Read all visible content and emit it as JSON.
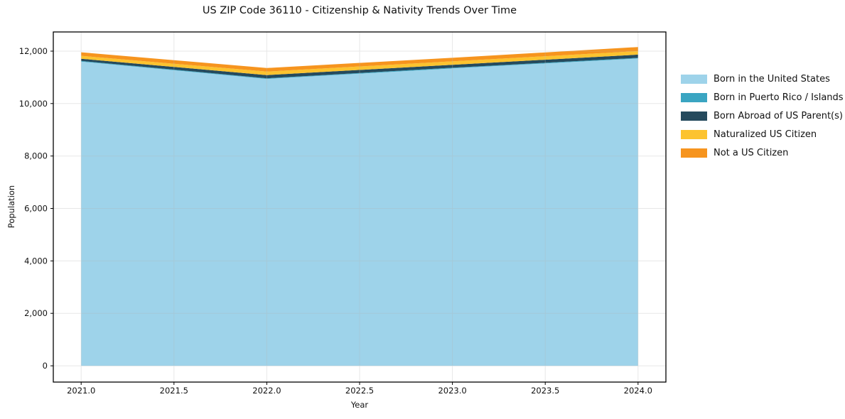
{
  "chart_data": {
    "type": "area",
    "stacked": true,
    "title": "US ZIP Code 36110 - Citizenship & Nativity Trends Over Time",
    "xlabel": "Year",
    "ylabel": "Population",
    "x": [
      2021,
      2022,
      2023,
      2024
    ],
    "series": [
      {
        "name": "Born in the United States",
        "color": "#9ed3ea",
        "values": [
          11600,
          10940,
          11340,
          11720
        ]
      },
      {
        "name": "Born in Puerto Rico / Islands",
        "color": "#3aa5c2",
        "values": [
          25,
          25,
          25,
          25
        ]
      },
      {
        "name": "Born Abroad of US Parent(s)",
        "color": "#254a5d",
        "values": [
          85,
          120,
          115,
          120
        ]
      },
      {
        "name": "Naturalized US Citizen",
        "color": "#fcc32f",
        "values": [
          110,
          135,
          130,
          135
        ]
      },
      {
        "name": "Not a US Citizen",
        "color": "#f6941e",
        "values": [
          135,
          135,
          135,
          155
        ]
      }
    ],
    "xticks": {
      "values": [
        2021.0,
        2021.5,
        2022.0,
        2022.5,
        2023.0,
        2023.5,
        2024.0
      ],
      "labels": [
        "2021.0",
        "2021.5",
        "2022.0",
        "2022.5",
        "2023.0",
        "2023.5",
        "2024.0"
      ]
    },
    "yticks": {
      "values": [
        0,
        2000,
        4000,
        6000,
        8000,
        10000,
        12000
      ],
      "labels": [
        "0",
        "2,000",
        "4,000",
        "6,000",
        "8,000",
        "10,000",
        "12,000"
      ]
    },
    "xlim": [
      2020.85,
      2024.15
    ],
    "ylim": [
      -620,
      12730
    ],
    "grid": true,
    "legend_position": "right-outside",
    "colors": {
      "background": "#ffffff",
      "grid": "#b3b3b3",
      "grid_opacity": 0.3,
      "spine": "#000000",
      "text": "#111111"
    }
  }
}
